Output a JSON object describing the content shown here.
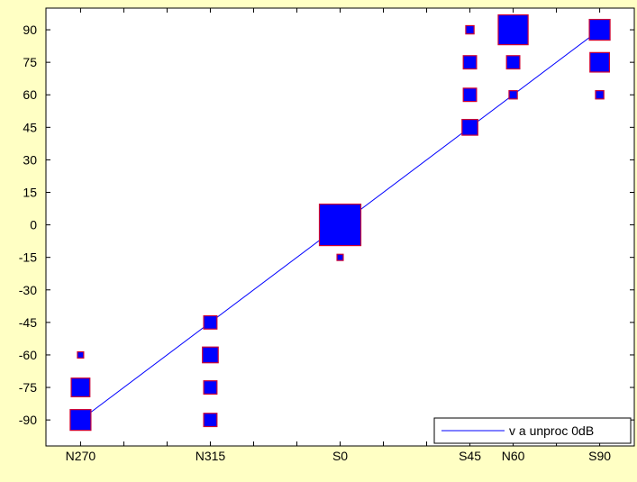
{
  "chart_data": {
    "type": "scatter",
    "title": "",
    "xlabel": "",
    "ylabel": "",
    "categories": [
      "N270",
      "N315",
      "S0",
      "S45",
      "N60",
      "S90"
    ],
    "x_positions": [
      -90,
      -45,
      0,
      45,
      60,
      90
    ],
    "xlim": [
      -102,
      102
    ],
    "ylim": [
      -102,
      100
    ],
    "yticks": [
      -90,
      -75,
      -60,
      -45,
      -30,
      -15,
      0,
      15,
      30,
      45,
      60,
      75,
      90
    ],
    "grid": false,
    "legend": {
      "position": "bottom-right",
      "entries": [
        "v a unproc 0dB"
      ]
    },
    "line_series": {
      "name": "v a unproc 0dB",
      "color": "#0000FF",
      "x": [
        -90,
        90
      ],
      "y": [
        -90,
        90
      ]
    },
    "bubble_series": {
      "fill_color": "#0000FF",
      "edge_color": "#CC0033",
      "points": [
        {
          "x": -90,
          "y": -60,
          "weight": 0.15
        },
        {
          "x": -90,
          "y": -75,
          "weight": 0.45
        },
        {
          "x": -90,
          "y": -90,
          "weight": 0.5
        },
        {
          "x": -45,
          "y": -45,
          "weight": 0.32
        },
        {
          "x": -45,
          "y": -60,
          "weight": 0.38
        },
        {
          "x": -45,
          "y": -75,
          "weight": 0.32
        },
        {
          "x": -45,
          "y": -90,
          "weight": 0.32
        },
        {
          "x": 0,
          "y": 0,
          "weight": 1.0
        },
        {
          "x": 0,
          "y": -15,
          "weight": 0.15
        },
        {
          "x": 45,
          "y": 90,
          "weight": 0.2
        },
        {
          "x": 45,
          "y": 75,
          "weight": 0.32
        },
        {
          "x": 45,
          "y": 60,
          "weight": 0.32
        },
        {
          "x": 45,
          "y": 45,
          "weight": 0.38
        },
        {
          "x": 60,
          "y": 90,
          "weight": 0.72
        },
        {
          "x": 60,
          "y": 75,
          "weight": 0.32
        },
        {
          "x": 60,
          "y": 60,
          "weight": 0.2
        },
        {
          "x": 90,
          "y": 90,
          "weight": 0.5
        },
        {
          "x": 90,
          "y": 75,
          "weight": 0.47
        },
        {
          "x": 90,
          "y": 60,
          "weight": 0.2
        }
      ]
    }
  }
}
